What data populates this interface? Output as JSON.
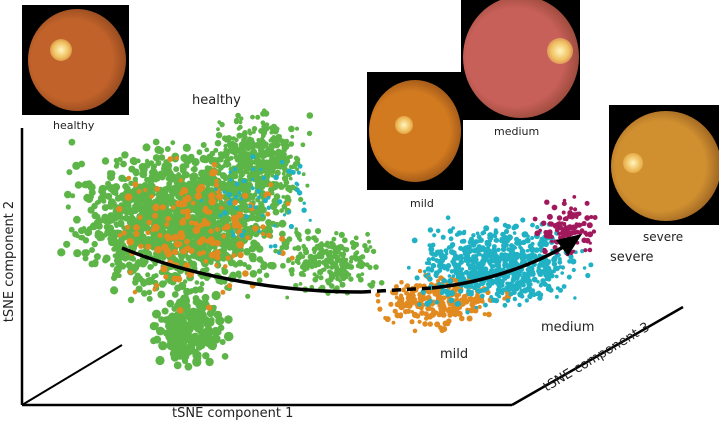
{
  "chart_data": {
    "type": "scatter",
    "projection": "3d",
    "xlabel": "tSNE component 1",
    "ylabel": "tSNE component 2",
    "zlabel": "tSNE component 3",
    "grid": false,
    "ticks": false,
    "categories": [
      {
        "name": "healthy",
        "color": "#5db548"
      },
      {
        "name": "mild",
        "color": "#e08a20"
      },
      {
        "name": "medium",
        "color": "#20b2c4"
      },
      {
        "name": "severe",
        "color": "#a2185c"
      }
    ],
    "annotations": {
      "healthy": "healthy",
      "mild": "mild",
      "medium": "medium",
      "severe": "severe"
    },
    "trend_arrow": "healthy → mild → medium → severe"
  },
  "images": [
    {
      "caption": "healthy",
      "tint": "#c0622a"
    },
    {
      "caption": "mild",
      "tint": "#d27a20"
    },
    {
      "caption": "medium",
      "tint": "#c8605a"
    },
    {
      "caption": "severe",
      "tint": "#d09030"
    }
  ]
}
